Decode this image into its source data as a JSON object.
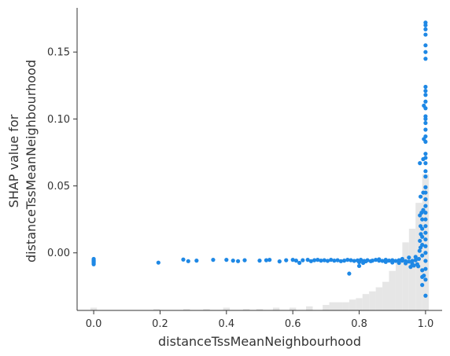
{
  "chart_data": {
    "type": "scatter",
    "title": "",
    "xlabel": "distanceTssMeanNeighbourhood",
    "ylabel": [
      "SHAP value for",
      "distanceTssMeanNeighbourhood"
    ],
    "xlim": [
      -0.05,
      1.05
    ],
    "ylim": [
      -0.043,
      0.183
    ],
    "xticks": [
      {
        "value": 0.0,
        "label": "0.0"
      },
      {
        "value": 0.2,
        "label": "0.2"
      },
      {
        "value": 0.4,
        "label": "0.4"
      },
      {
        "value": 0.6,
        "label": "0.6"
      },
      {
        "value": 0.8,
        "label": "0.8"
      },
      {
        "value": 1.0,
        "label": "1.0"
      }
    ],
    "yticks": [
      {
        "value": 0.0,
        "label": "0.00"
      },
      {
        "value": 0.05,
        "label": "0.05"
      },
      {
        "value": 0.1,
        "label": "0.10"
      },
      {
        "value": 0.15,
        "label": "0.15"
      }
    ],
    "grid": false,
    "point_color": "#1e88e5",
    "histogram_color": "#e6e6e6",
    "histogram": {
      "bins": [
        [
          0.0,
          0.02
        ],
        [
          0.19,
          0.01
        ],
        [
          0.28,
          0.01
        ],
        [
          0.34,
          0.01
        ],
        [
          0.4,
          0.02
        ],
        [
          0.46,
          0.01
        ],
        [
          0.5,
          0.01
        ],
        [
          0.55,
          0.02
        ],
        [
          0.6,
          0.02
        ],
        [
          0.65,
          0.03
        ],
        [
          0.7,
          0.04
        ],
        [
          0.72,
          0.06
        ],
        [
          0.74,
          0.06
        ],
        [
          0.76,
          0.06
        ],
        [
          0.78,
          0.08
        ],
        [
          0.8,
          0.09
        ],
        [
          0.82,
          0.12
        ],
        [
          0.84,
          0.14
        ],
        [
          0.86,
          0.17
        ],
        [
          0.88,
          0.21
        ],
        [
          0.9,
          0.29
        ],
        [
          0.92,
          0.37
        ],
        [
          0.94,
          0.5
        ],
        [
          0.96,
          0.6
        ],
        [
          0.98,
          0.79
        ],
        [
          1.0,
          1.0
        ]
      ]
    },
    "points": [
      [
        0.0,
        -0.0045
      ],
      [
        0.0,
        -0.0055
      ],
      [
        0.0,
        -0.0062
      ],
      [
        0.0,
        -0.007
      ],
      [
        0.0,
        -0.0078
      ],
      [
        0.0,
        -0.0085
      ],
      [
        0.195,
        -0.0073
      ],
      [
        0.27,
        -0.005
      ],
      [
        0.285,
        -0.0062
      ],
      [
        0.31,
        -0.0058
      ],
      [
        0.36,
        -0.0052
      ],
      [
        0.4,
        -0.0052
      ],
      [
        0.42,
        -0.0058
      ],
      [
        0.435,
        -0.0062
      ],
      [
        0.455,
        -0.0055
      ],
      [
        0.5,
        -0.0058
      ],
      [
        0.52,
        -0.0055
      ],
      [
        0.53,
        -0.0052
      ],
      [
        0.56,
        -0.0064
      ],
      [
        0.58,
        -0.0055
      ],
      [
        0.6,
        -0.0052
      ],
      [
        0.61,
        -0.0058
      ],
      [
        0.62,
        -0.0075
      ],
      [
        0.63,
        -0.0055
      ],
      [
        0.645,
        -0.0052
      ],
      [
        0.655,
        -0.0062
      ],
      [
        0.665,
        -0.0055
      ],
      [
        0.675,
        -0.0052
      ],
      [
        0.685,
        -0.0058
      ],
      [
        0.695,
        -0.0055
      ],
      [
        0.705,
        -0.006
      ],
      [
        0.715,
        -0.0052
      ],
      [
        0.725,
        -0.0058
      ],
      [
        0.735,
        -0.0055
      ],
      [
        0.745,
        -0.0062
      ],
      [
        0.755,
        -0.0058
      ],
      [
        0.765,
        -0.0052
      ],
      [
        0.775,
        -0.0055
      ],
      [
        0.77,
        -0.0155
      ],
      [
        0.785,
        -0.006
      ],
      [
        0.795,
        -0.0056
      ],
      [
        0.805,
        -0.0052
      ],
      [
        0.815,
        -0.006
      ],
      [
        0.825,
        -0.0055
      ],
      [
        0.835,
        -0.0062
      ],
      [
        0.8,
        -0.0069
      ],
      [
        0.82,
        -0.0063
      ],
      [
        0.84,
        -0.0058
      ],
      [
        0.8,
        -0.0098
      ],
      [
        0.812,
        -0.0075
      ],
      [
        0.85,
        -0.0052
      ],
      [
        0.86,
        -0.0058
      ],
      [
        0.87,
        -0.006
      ],
      [
        0.88,
        -0.0052
      ],
      [
        0.89,
        -0.0058
      ],
      [
        0.9,
        -0.0055
      ],
      [
        0.91,
        -0.006
      ],
      [
        0.92,
        -0.0055
      ],
      [
        0.93,
        -0.0058
      ],
      [
        0.94,
        -0.0062
      ],
      [
        0.95,
        -0.0065
      ],
      [
        0.96,
        -0.006
      ],
      [
        0.97,
        -0.0055
      ],
      [
        0.88,
        -0.0068
      ],
      [
        0.9,
        -0.0072
      ],
      [
        0.92,
        -0.0075
      ],
      [
        0.94,
        -0.0078
      ],
      [
        0.96,
        -0.0082
      ],
      [
        0.86,
        -0.0048
      ],
      [
        0.93,
        -0.0045
      ],
      [
        0.95,
        -0.0035
      ],
      [
        0.97,
        -0.003
      ],
      [
        0.975,
        -0.0085
      ],
      [
        0.978,
        -0.01
      ],
      [
        0.965,
        -0.0095
      ],
      [
        0.955,
        -0.0105
      ],
      [
        0.98,
        -0.0045
      ],
      [
        0.982,
        0.0015
      ],
      [
        0.985,
        0.004
      ],
      [
        0.983,
        0.009
      ],
      [
        0.986,
        0.014
      ],
      [
        0.985,
        0.02
      ],
      [
        0.983,
        0.028
      ],
      [
        0.985,
        0.042
      ],
      [
        0.983,
        0.067
      ],
      [
        0.988,
        0.03
      ],
      [
        0.99,
        -0.002
      ],
      [
        0.99,
        0.006
      ],
      [
        0.99,
        0.012
      ],
      [
        0.99,
        0.018
      ],
      [
        0.99,
        0.025
      ],
      [
        0.993,
        0.032
      ],
      [
        0.993,
        0.045
      ],
      [
        0.993,
        0.07
      ],
      [
        0.995,
        0.085
      ],
      [
        0.995,
        0.11
      ],
      [
        0.99,
        -0.018
      ],
      [
        0.99,
        -0.013
      ],
      [
        0.99,
        -0.024
      ],
      [
        0.995,
        -0.017
      ],
      [
        1.0,
        -0.032
      ],
      [
        1.0,
        -0.02
      ],
      [
        1.0,
        -0.012
      ],
      [
        1.0,
        -0.006
      ],
      [
        1.0,
        0.0
      ],
      [
        1.0,
        0.005
      ],
      [
        1.0,
        0.01
      ],
      [
        1.0,
        0.015
      ],
      [
        1.0,
        0.02
      ],
      [
        1.0,
        0.025
      ],
      [
        1.0,
        0.03
      ],
      [
        1.0,
        0.035
      ],
      [
        1.0,
        0.04
      ],
      [
        1.0,
        0.045
      ],
      [
        1.0,
        0.049
      ],
      [
        1.0,
        0.057
      ],
      [
        1.0,
        0.061
      ],
      [
        1.0,
        0.067
      ],
      [
        1.0,
        0.071
      ],
      [
        1.0,
        0.074
      ],
      [
        1.0,
        0.083
      ],
      [
        1.0,
        0.087
      ],
      [
        1.0,
        0.092
      ],
      [
        1.0,
        0.097
      ],
      [
        1.0,
        0.1
      ],
      [
        1.0,
        0.102
      ],
      [
        1.0,
        0.108
      ],
      [
        1.0,
        0.113
      ],
      [
        1.0,
        0.118
      ],
      [
        1.0,
        0.121
      ],
      [
        1.0,
        0.124
      ],
      [
        1.0,
        0.145
      ],
      [
        1.0,
        0.15
      ],
      [
        1.0,
        0.155
      ],
      [
        1.0,
        0.163
      ],
      [
        1.0,
        0.167
      ],
      [
        1.0,
        0.17
      ],
      [
        1.0,
        0.172
      ]
    ]
  }
}
